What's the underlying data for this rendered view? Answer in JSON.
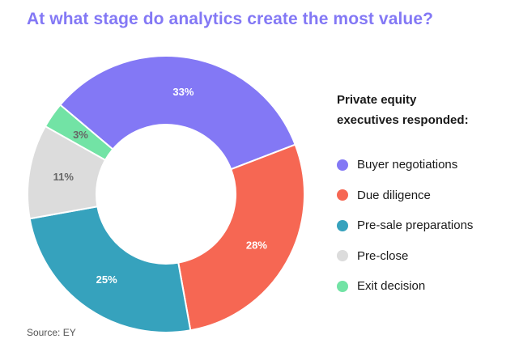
{
  "title": "At what stage do analytics create the most value?",
  "legend_title_lines": [
    "Private equity",
    "executives responded:"
  ],
  "source": "Source: EY",
  "colors": {
    "title": "#8378f5",
    "label_dark_text": "#ffffff",
    "label_light_text": "#666666"
  },
  "chart_data": {
    "type": "pie",
    "donut": true,
    "categories": [
      "Buyer negotiations",
      "Due diligence",
      "Pre-sale preparations",
      "Pre-close",
      "Exit decision"
    ],
    "values": [
      33,
      28,
      25,
      11,
      3
    ],
    "value_labels": [
      "33%",
      "28%",
      "25%",
      "11%",
      "3%"
    ],
    "colors": [
      "#8378f5",
      "#f66753",
      "#36a2bd",
      "#dcdcdc",
      "#72e3a5"
    ],
    "title": "At what stage do analytics create the most value?",
    "legend_title": "Private equity executives responded:",
    "legend_position": "right"
  }
}
